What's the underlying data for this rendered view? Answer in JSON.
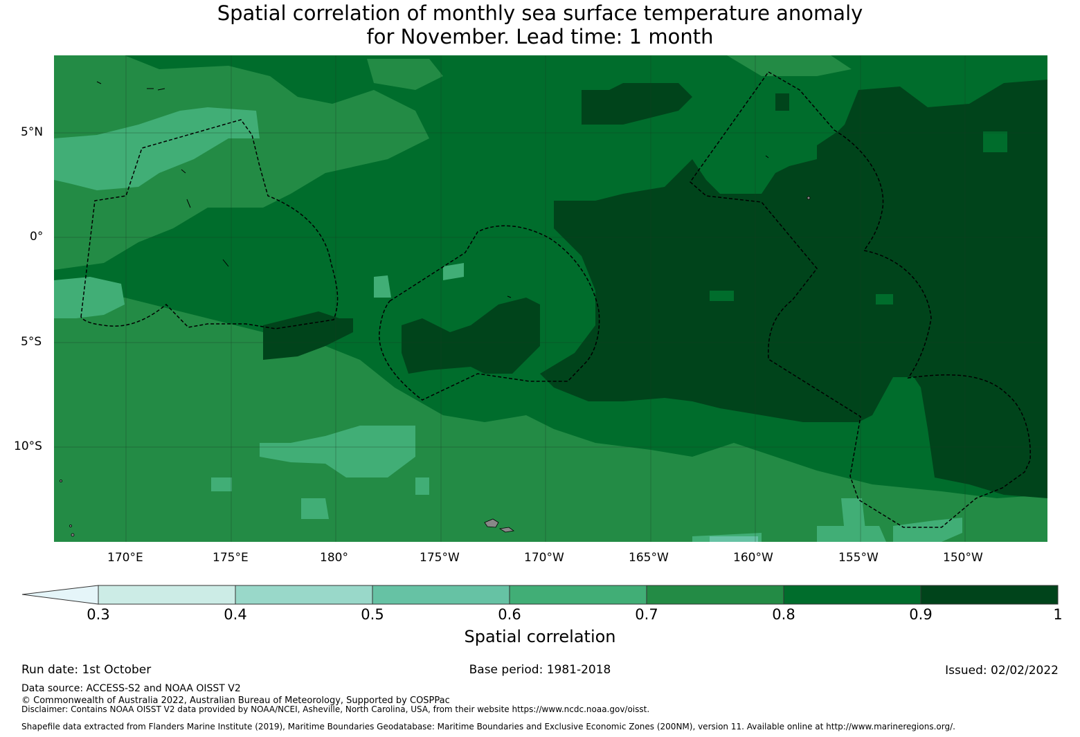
{
  "title": {
    "line1": "Spatial correlation of monthly sea surface temperature anomaly",
    "line2": "for November. Lead time: 1 month"
  },
  "map": {
    "lat_labels": [
      "5°N",
      "0°",
      "5°S",
      "10°S"
    ],
    "lon_labels": [
      "170°E",
      "175°E",
      "180°",
      "175°W",
      "170°W",
      "165°W",
      "160°W",
      "155°W",
      "150°W"
    ],
    "extent": {
      "lon_min": 166.6,
      "lon_max": 214.0,
      "lat_min": -14.5,
      "lat_max": 8.7
    },
    "gridlines": true,
    "colors": {
      "lt_0_3": "#e5f5f9",
      "0.3-0.4": "#ccece6",
      "0.4-0.5": "#99d8c9",
      "0.5-0.6": "#66c2a4",
      "0.6-0.7": "#41ae76",
      "0.7-0.8": "#238b45",
      "0.8-0.9": "#006d2c",
      "0.9-1": "#00441b"
    }
  },
  "colorbar": {
    "ticks": [
      "0.3",
      "0.4",
      "0.5",
      "0.6",
      "0.7",
      "0.8",
      "0.9",
      "1"
    ],
    "label": "Spatial correlation",
    "extend": "min"
  },
  "footer": {
    "run_date": "Run date: 1st October",
    "base_period": "Base period: 1981-2018",
    "issued": "Issued: 02/02/2022",
    "data_source": "Data source: ACCESS-S2 and NOAA OISST V2",
    "copyright": "© Commonwealth of Australia 2022, Australian Bureau of Meteorology, Supported by COSPPac",
    "disclaimer": "Disclaimer: Contains NOAA OISST V2 data provided by NOAA/NCEI, Asheville, North Carolina, USA, from their website https://www.ncdc.noaa.gov/oisst.",
    "shapefile": "Shapefile data extracted from Flanders Marine Institute (2019), Maritime Boundaries Geodatabase: Maritime Boundaries and Exclusive Economic Zones (200NM), version 11. Available online at http://www.marineregions.org/."
  }
}
